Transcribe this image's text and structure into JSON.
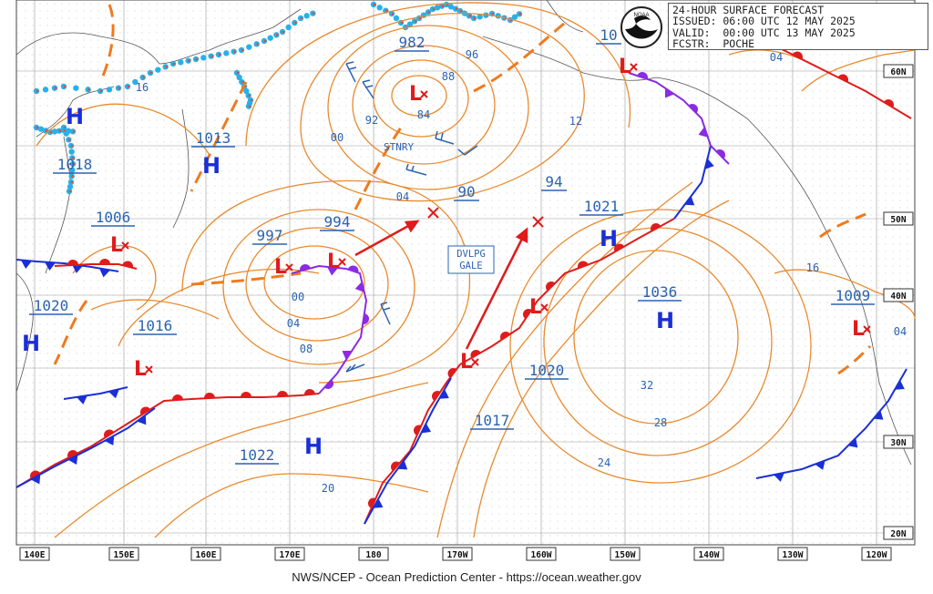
{
  "header": {
    "line1": "24-HOUR SURFACE FORECAST",
    "line2": "ISSUED: 06:00 UTC 12 MAY 2025",
    "line3": "VALID:  00:00 UTC 13 MAY 2025",
    "line4": "FCSTR:  POCHE"
  },
  "credit": "NWS/NCEP - Ocean Prediction Center - https://ocean.weather.gov",
  "logo_text": "NOAA",
  "colors": {
    "isobar": "#e88a2e",
    "isobar_label": "#2b63b0",
    "high": "#1a2fd6",
    "low": "#e01b1b",
    "cold_front": "#1a2fd6",
    "warm_front": "#e01b1b",
    "occluded_front": "#8b2be2",
    "ice_edge": "#2ab0e8",
    "grid": "#9a9a9a"
  },
  "lon_labels": [
    "140E",
    "150E",
    "160E",
    "170E",
    "180",
    "170W",
    "160W",
    "150W",
    "140W",
    "130W",
    "120W"
  ],
  "lat_labels": [
    "60N",
    "50N",
    "40N",
    "30N",
    "20N"
  ],
  "pressure_centers": [
    {
      "type": "H",
      "value": "1018"
    },
    {
      "type": "H",
      "value": "1013"
    },
    {
      "type": "H",
      "value": "1020"
    },
    {
      "type": "H",
      "value": "1022"
    },
    {
      "type": "H",
      "value": "1021"
    },
    {
      "type": "H",
      "value": "1036"
    },
    {
      "type": "L",
      "value": "982"
    },
    {
      "type": "L",
      "value": "1006"
    },
    {
      "type": "L",
      "value": "1016"
    },
    {
      "type": "L",
      "value": "997"
    },
    {
      "type": "L",
      "value": "994"
    },
    {
      "type": "L",
      "value": "90"
    },
    {
      "type": "L",
      "value": "94"
    },
    {
      "type": "L",
      "value": "1020"
    },
    {
      "type": "L",
      "value": "1017"
    },
    {
      "type": "L",
      "value": "1009"
    },
    {
      "type": "L",
      "value": "10"
    }
  ],
  "isobar_labels": [
    "16",
    "96",
    "88",
    "84",
    "92",
    "00",
    "12",
    "04",
    "00",
    "04",
    "08",
    "32",
    "28",
    "24",
    "20",
    "16",
    "04",
    "04"
  ],
  "annotations": {
    "stationary": "STNRY",
    "warning_line1": "DVLPG",
    "warning_line2": "GALE"
  }
}
